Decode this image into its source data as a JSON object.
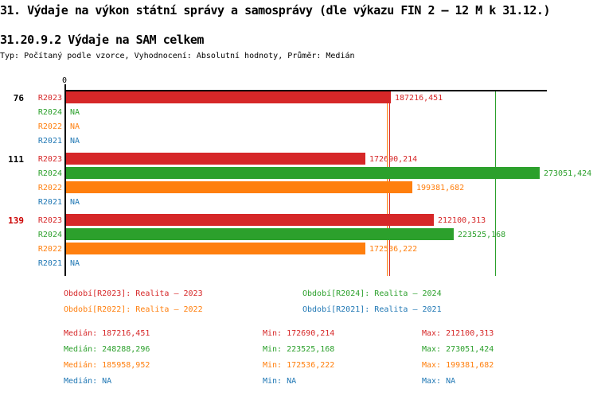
{
  "title": "31. Výdaje na výkon státní správy a samosprávy (dle výkazu FIN 2 – 12 M k 31.12.)",
  "subtitle": "31.20.9.2 Výdaje na SAM celkem",
  "meta": "Typ: Počítaný podle vzorce, Vyhodnocení: Absolutní hodnoty, Průměr: Medián",
  "colors": {
    "axis": "#000000",
    "highlighted_group_label": "#cc0000",
    "series": {
      "R2023": "#d62728",
      "R2024": "#2ca02c",
      "R2022": "#ff7f0e",
      "R2021": "#1f77b4"
    }
  },
  "chart_data": {
    "type": "bar",
    "orientation": "horizontal",
    "title": "",
    "xlabel": "",
    "ylabel": "",
    "xlim": [
      0,
      278000
    ],
    "zero_tick_label": "0",
    "na_text": "NA",
    "decimal_separator": ",",
    "series_order": [
      "R2023",
      "R2024",
      "R2022",
      "R2021"
    ],
    "groups": [
      {
        "label": "76",
        "highlighted": false,
        "values": {
          "R2023": 187216.451,
          "R2024": null,
          "R2022": null,
          "R2021": null
        }
      },
      {
        "label": "111",
        "highlighted": false,
        "values": {
          "R2023": 172690.214,
          "R2024": 273051.424,
          "R2022": 199381.682,
          "R2021": null
        }
      },
      {
        "label": "139",
        "highlighted": true,
        "values": {
          "R2023": 212100.313,
          "R2024": 223525.168,
          "R2022": 172536.222,
          "R2021": null
        }
      }
    ],
    "median_lines": {
      "R2023": 187216.451,
      "R2024": 248288.296,
      "R2022": 185958.952,
      "R2021": null
    }
  },
  "legend": {
    "items": [
      {
        "series": "R2023",
        "text": "Období[R2023]: Realita – 2023"
      },
      {
        "series": "R2024",
        "text": "Období[R2024]: Realita – 2024"
      },
      {
        "series": "R2022",
        "text": "Období[R2022]: Realita – 2022"
      },
      {
        "series": "R2021",
        "text": "Období[R2021]: Realita – 2021"
      }
    ]
  },
  "stats": {
    "median_label": "Medián",
    "min_label": "Min",
    "max_label": "Max",
    "rows": [
      {
        "series": "R2023",
        "median": 187216.451,
        "min": 172690.214,
        "max": 212100.313
      },
      {
        "series": "R2024",
        "median": 248288.296,
        "min": 223525.168,
        "max": 273051.424
      },
      {
        "series": "R2022",
        "median": 185958.952,
        "min": 172536.222,
        "max": 199381.682
      },
      {
        "series": "R2021",
        "median": null,
        "min": null,
        "max": null
      }
    ]
  }
}
